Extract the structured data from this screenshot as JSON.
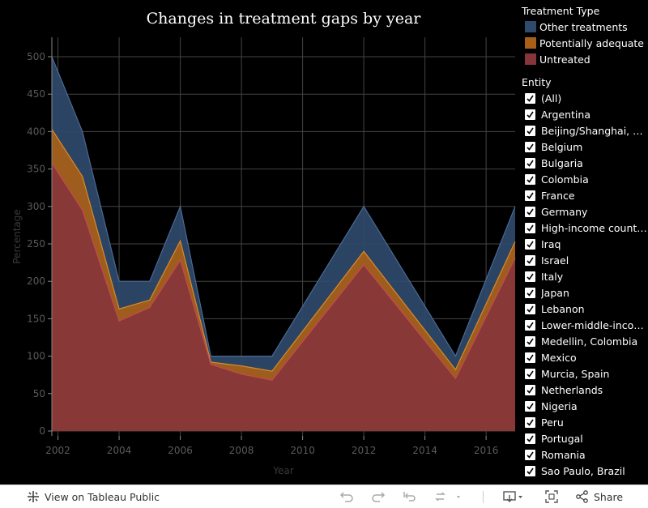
{
  "chart_data": {
    "type": "area",
    "stacked": true,
    "title": "Changes in treatment gaps by year",
    "xlabel": "Year",
    "ylabel": "Percentage",
    "xlim": [
      2001.8,
      2016.95
    ],
    "ylim": [
      0,
      500
    ],
    "xticks": [
      2002,
      2004,
      2006,
      2008,
      2010,
      2012,
      2014,
      2016
    ],
    "yticks": [
      0,
      50,
      100,
      150,
      200,
      250,
      300,
      350,
      400,
      450,
      500
    ],
    "x": [
      2001.8,
      2002.8,
      2004,
      2005,
      2006,
      2007,
      2008,
      2009,
      2012,
      2015,
      2016.95
    ],
    "series": [
      {
        "name": "Untreated",
        "color": "#86353a",
        "values": [
          358,
          295,
          147,
          165,
          228,
          89,
          76,
          68,
          222,
          70,
          231
        ]
      },
      {
        "name": "Potentially adequate",
        "color": "#a85f17",
        "values": [
          45,
          45,
          16,
          10,
          26,
          3,
          11,
          12,
          18,
          12,
          22
        ]
      },
      {
        "name": "Other treatments",
        "color": "#2f4a6b",
        "values": [
          97,
          60,
          37,
          25,
          46,
          8,
          13,
          20,
          60,
          18,
          47
        ]
      }
    ],
    "grid": true,
    "legend_position": "right"
  },
  "legend": {
    "title": "Treatment Type",
    "items": [
      {
        "label": "Other treatments",
        "color": "#2f4a6b"
      },
      {
        "label": "Potentially adequate",
        "color": "#a85f17"
      },
      {
        "label": "Untreated",
        "color": "#86353a"
      }
    ]
  },
  "filter": {
    "title": "Entity",
    "items": [
      "(All)",
      "Argentina",
      "Beijing/Shanghai, Ch...",
      "Belgium",
      "Bulgaria",
      "Colombia",
      "France",
      "Germany",
      "High-income countries",
      "Iraq",
      "Israel",
      "Italy",
      "Japan",
      "Lebanon",
      "Lower-middle-incom...",
      "Medellin, Colombia",
      "Mexico",
      "Murcia, Spain",
      "Netherlands",
      "Nigeria",
      "Peru",
      "Portugal",
      "Romania",
      "Sao Paulo, Brazil"
    ]
  },
  "toolbar": {
    "view_label": "View on Tableau Public",
    "share_label": "Share"
  }
}
